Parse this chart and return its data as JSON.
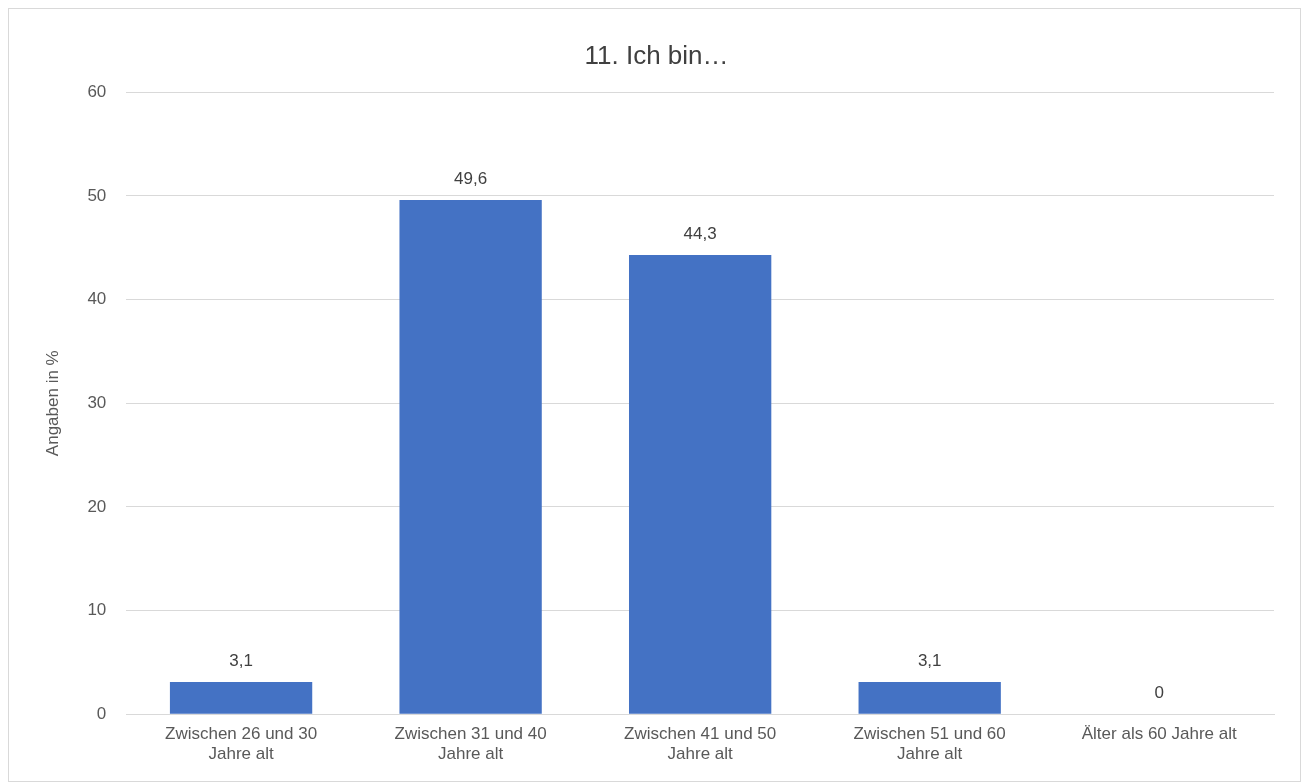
{
  "chart_data": {
    "type": "bar",
    "title": "11. Ich bin…",
    "ylabel": "Angaben in %",
    "categories": [
      "Zwischen 26 und 30 Jahre alt",
      "Zwischen 31 und 40 Jahre alt",
      "Zwischen 41 und 50 Jahre alt",
      "Zwischen 51 und 60 Jahre alt",
      "Älter als 60 Jahre alt"
    ],
    "values": [
      3.1,
      49.6,
      44.3,
      3.1,
      0
    ],
    "value_labels": [
      "3,1",
      "49,6",
      "44,3",
      "3,1",
      "0"
    ],
    "color": "#4472c4",
    "ylim": [
      0,
      60
    ],
    "yticks": [
      0,
      10,
      20,
      30,
      40,
      50,
      60
    ],
    "grid": "y",
    "legend": false
  }
}
